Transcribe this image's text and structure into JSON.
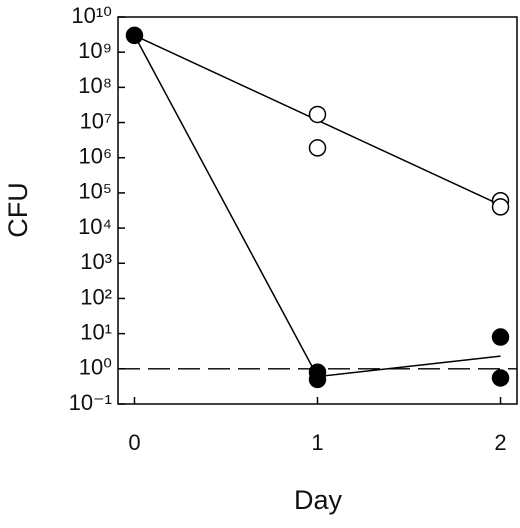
{
  "chart_data": {
    "type": "scatter",
    "x_label": "Day",
    "y_label": "CFU",
    "log_y": true,
    "xlim": [
      -0.09,
      2.09
    ],
    "ylim": [
      0.1,
      10000000000
    ],
    "xticks": [
      0,
      1,
      2
    ],
    "yticks": [
      {
        "value": 0.1,
        "label": "10⁻¹"
      },
      {
        "value": 1,
        "label": "10⁰"
      },
      {
        "value": 10,
        "label": "10¹"
      },
      {
        "value": 100,
        "label": "10²"
      },
      {
        "value": 1000,
        "label": "10³"
      },
      {
        "value": 10000,
        "label": "10⁴"
      },
      {
        "value": 100000,
        "label": "10⁵"
      },
      {
        "value": 1000000,
        "label": "10⁶"
      },
      {
        "value": 10000000,
        "label": "10⁷"
      },
      {
        "value": 100000000,
        "label": "10⁸"
      },
      {
        "value": 1000000000,
        "label": "10⁹"
      },
      {
        "value": 10000000000,
        "label": "10¹⁰"
      }
    ],
    "reference_line": 1,
    "series": [
      {
        "marker": "open",
        "color": "#000000",
        "x": [
          1,
          1,
          2,
          2
        ],
        "values": [
          17000000,
          1900000,
          60000,
          40000
        ]
      },
      {
        "marker": "filled",
        "color": "#000000",
        "x": [
          0,
          1,
          1,
          2,
          2
        ],
        "values": [
          3000000000,
          0.8,
          0.5,
          8,
          0.55
        ]
      }
    ],
    "fit_lines": [
      {
        "color": "#000000",
        "x": [
          0,
          2
        ],
        "values": [
          3000000000,
          45000
        ]
      },
      {
        "color": "#000000",
        "x": [
          0,
          1,
          2
        ],
        "values": [
          3000000000,
          0.6,
          2.3
        ]
      }
    ]
  }
}
